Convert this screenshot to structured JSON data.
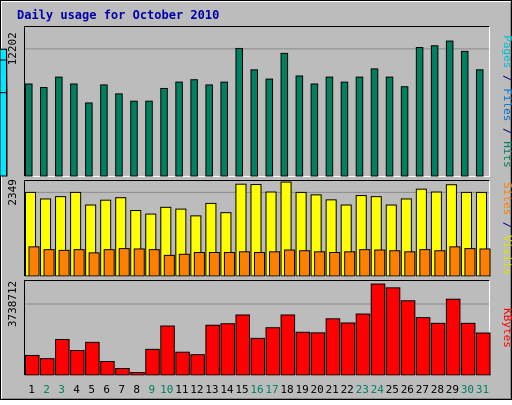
{
  "chart_data": {
    "type": "bar",
    "title": "Daily usage for October 2010",
    "categories": [
      "1",
      "2",
      "3",
      "4",
      "5",
      "6",
      "7",
      "8",
      "9",
      "10",
      "11",
      "12",
      "13",
      "14",
      "15",
      "16",
      "17",
      "18",
      "19",
      "20",
      "21",
      "22",
      "23",
      "24",
      "25",
      "26",
      "27",
      "28",
      "29",
      "30",
      "31"
    ],
    "weekend_categories": [
      "2",
      "3",
      "9",
      "10",
      "16",
      "17",
      "23",
      "24",
      "30",
      "31"
    ],
    "panels": [
      {
        "name": "hits-files-pages",
        "scale_label": "12202",
        "ymax": 14300,
        "side_labels": [
          {
            "text": "Pages",
            "color": "#00c0d0"
          },
          {
            "text": " / ",
            "color": "#000080"
          },
          {
            "text": "Files",
            "color": "#0070d0"
          },
          {
            "text": " / ",
            "color": "#000080"
          },
          {
            "text": "Hits",
            "color": "#008060"
          }
        ],
        "series": [
          {
            "name": "Hits",
            "color": "#008060",
            "values": [
              8830,
              8490,
              9490,
              8830,
              7010,
              8740,
              7880,
              7180,
              7180,
              8400,
              9010,
              9240,
              8740,
              9010,
              12240,
              10190,
              9300,
              11770,
              9600,
              8830,
              9490,
              9010,
              9490,
              10280,
              9490,
              8570,
              12330,
              12500,
              12950,
              11960,
              10190
            ]
          },
          {
            "name": "Files",
            "color": "#0070d0",
            "values": [
              8140,
              7800,
              8740,
              7970,
              6360,
              7950,
              7270,
              6550,
              6640,
              7760,
              8220,
              8490,
              8140,
              8310,
              11400,
              9680,
              8830,
              11120,
              8920,
              8220,
              8660,
              8350,
              9180,
              9750,
              8660,
              7880,
              10580,
              11570,
              12160,
              11130,
              8000
            ]
          },
          {
            "name": "Pages",
            "color": "#00e8ff",
            "values": [
              8140,
              7800,
              8740,
              7970,
              6360,
              7950,
              7270,
              6550,
              6640,
              7760,
              8220,
              8490,
              8140,
              8310,
              11400,
              9680,
              8830,
              11120,
              8920,
              8220,
              8660,
              8350,
              9180,
              9750,
              8660,
              7880,
              10580,
              11570,
              12160,
              11130,
              8000
            ]
          }
        ]
      },
      {
        "name": "visits-sites",
        "scale_label": "2349",
        "ymax": 2670,
        "side_labels": [
          {
            "text": "Sites",
            "color": "#ff8000"
          },
          {
            "text": " / ",
            "color": "#000080"
          },
          {
            "text": "Visits",
            "color": "#e0e000"
          }
        ],
        "series": [
          {
            "name": "Visits",
            "color": "#ffff00",
            "values": [
              2349,
              2165,
              2230,
              2349,
              1995,
              2130,
              2200,
              1840,
              1740,
              1930,
              1880,
              1690,
              2040,
              1780,
              2580,
              2570,
              2360,
              2640,
              2349,
              2280,
              2140,
              1995,
              2260,
              2230,
              1995,
              2165,
              2440,
              2360,
              2565,
              2349,
              2349
            ]
          },
          {
            "name": "Sites",
            "color": "#ff8000",
            "values": [
              820,
              740,
              720,
              740,
              650,
              740,
              770,
              760,
              740,
              580,
              610,
              660,
              660,
              660,
              680,
              660,
              680,
              730,
              710,
              680,
              660,
              680,
              740,
              730,
              710,
              680,
              740,
              710,
              820,
              770,
              760
            ]
          }
        ]
      },
      {
        "name": "kbytes",
        "scale_label": "3738712",
        "ymax": 4950000,
        "side_labels": [
          {
            "text": "KBytes",
            "color": "#ff0000"
          }
        ],
        "series": [
          {
            "name": "KBytes",
            "color": "#ff0000",
            "values": [
              1030000,
              860000,
              1870000,
              1290000,
              1720000,
              710000,
              340000,
              130000,
              1350000,
              2580000,
              1200000,
              1070000,
              2620000,
              2700000,
              3160000,
              1930000,
              2490000,
              3160000,
              2250000,
              2220000,
              2960000,
              2740000,
              3210000,
              4790000,
              4590000,
              3910000,
              3020000,
              2720000,
              3990000,
              2720000,
              2210000
            ]
          }
        ]
      }
    ]
  }
}
